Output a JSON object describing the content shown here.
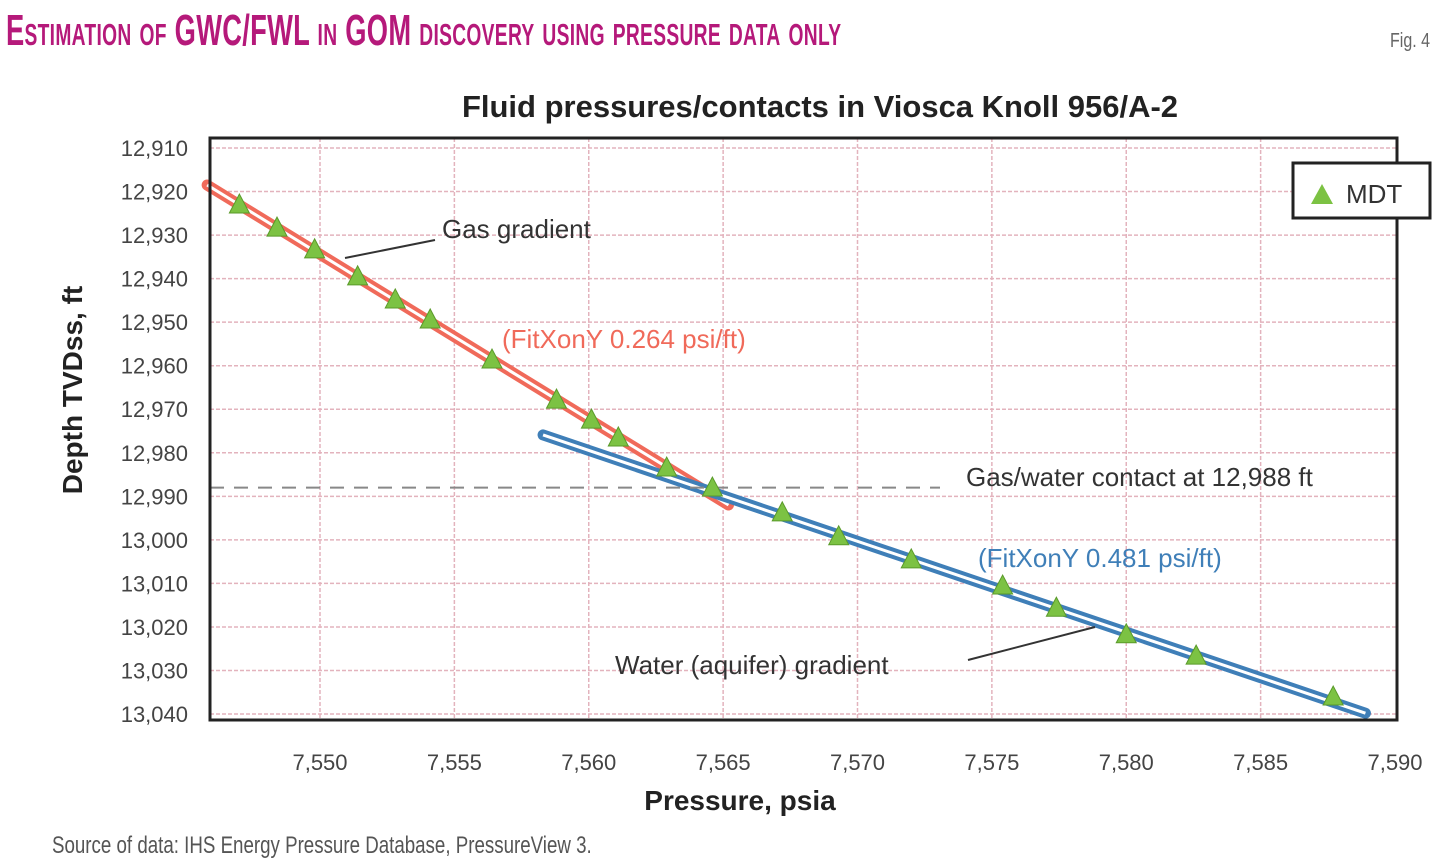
{
  "figure": {
    "title": "Estimation of GWC/FWL in GOM discovery using pressure data only",
    "fig_label": "Fig. 4",
    "source": "Source of data: IHS Energy Pressure Database, PressureView 3."
  },
  "chart_data": {
    "type": "scatter",
    "title": "Fluid pressures/contacts in Viosca Knoll 956/A-2",
    "xlabel": "Pressure, psia",
    "ylabel": "Depth TVDss, ft",
    "xlim": [
      7545.8,
      7590
    ],
    "ylim": [
      13040,
      12910
    ],
    "y_inverted": true,
    "grid": true,
    "x_ticks": [
      "7,550",
      "7,555",
      "7,560",
      "7,565",
      "7,570",
      "7,575",
      "7,580",
      "7,585",
      "7,590"
    ],
    "x_tick_values": [
      7550,
      7555,
      7560,
      7565,
      7570,
      7575,
      7580,
      7585,
      7590
    ],
    "y_ticks": [
      "12,910",
      "12,920",
      "12,930",
      "12,940",
      "12,950",
      "12,960",
      "12,970",
      "12,980",
      "12,990",
      "13,000",
      "13,010",
      "13,020",
      "13,030",
      "13,040"
    ],
    "y_tick_values": [
      12910,
      12920,
      12930,
      12940,
      12950,
      12960,
      12970,
      12980,
      12990,
      13000,
      13010,
      13020,
      13030,
      13040
    ],
    "legend": {
      "position": "top-right",
      "entries": [
        {
          "name": "MDT",
          "marker": "triangle",
          "color": "#7cc243"
        }
      ]
    },
    "series": [
      {
        "name": "MDT",
        "kind": "points",
        "color": "#7cc243",
        "points": [
          [
            7547.0,
            12923.1
          ],
          [
            7548.4,
            12928.4
          ],
          [
            7549.8,
            12933.4
          ],
          [
            7551.4,
            12939.6
          ],
          [
            7552.8,
            12944.9
          ],
          [
            7554.1,
            12949.5
          ],
          [
            7556.4,
            12958.7
          ],
          [
            7558.8,
            12967.9
          ],
          [
            7560.1,
            12972.5
          ],
          [
            7561.1,
            12976.6
          ],
          [
            7562.9,
            12983.5
          ],
          [
            7564.6,
            12988.1
          ],
          [
            7567.2,
            12993.8
          ],
          [
            7569.3,
            12999.3
          ],
          [
            7572.0,
            13004.6
          ],
          [
            7575.4,
            13010.6
          ],
          [
            7577.4,
            13015.7
          ],
          [
            7580.0,
            13021.8
          ],
          [
            7582.6,
            13026.7
          ],
          [
            7587.7,
            13036.1
          ]
        ]
      },
      {
        "kind": "line",
        "color": "#f06a5a",
        "points": [
          [
            7545.8,
            12918.5
          ],
          [
            7565.2,
            12992.0
          ]
        ]
      },
      {
        "kind": "line",
        "color": "#3f7fb8",
        "points": [
          [
            7558.3,
            12975.9
          ],
          [
            7588.9,
            13039.8
          ]
        ]
      }
    ],
    "contact": {
      "depth": 12988,
      "color": "#888888"
    },
    "annotations": {
      "gas_gradient": "Gas gradient",
      "gas_fit": "(FitXonY 0.264 psi/ft)",
      "contact_label": "Gas/water contact at 12,988 ft",
      "water_fit": "(FitXonY 0.481 psi/ft)",
      "water_gradient": "Water (aquifer) gradient"
    }
  }
}
